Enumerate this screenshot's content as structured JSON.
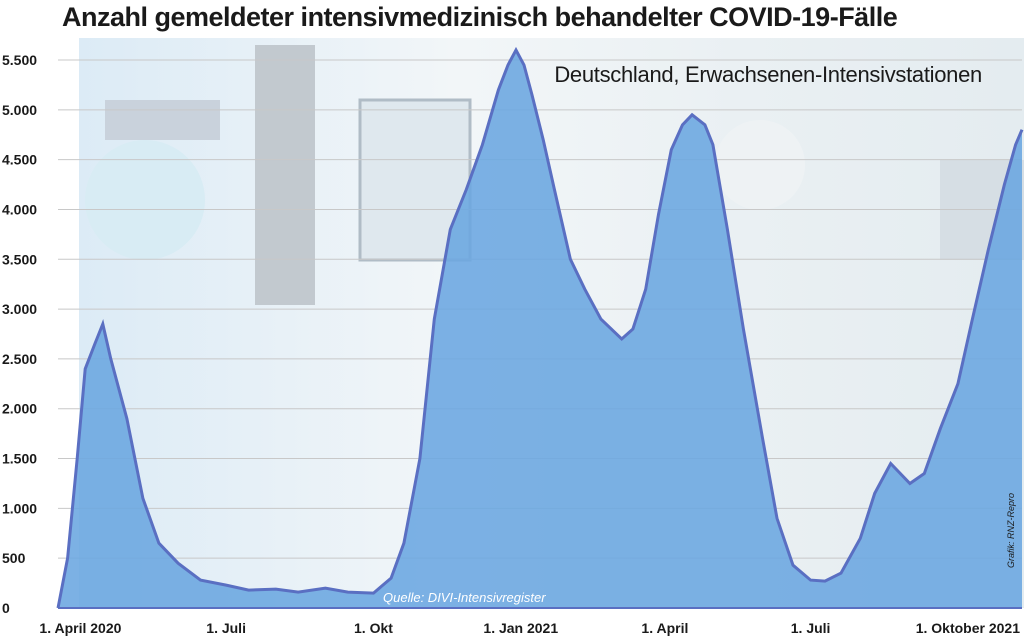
{
  "chart_data": {
    "type": "area",
    "title": "Anzahl gemeldeter intensivmedizinisch behandelter COVID-19-Fälle",
    "subtitle": "Deutschland, Erwachsenen-Intensivstationen",
    "source": "Quelle: DIVI-Intensivregister",
    "credit": "Grafik: RNZ-Repro",
    "xlabel": "",
    "ylabel": "",
    "ylim": [
      0,
      5500
    ],
    "grid": true,
    "background": "photo of intensive care unit staff (washed out)",
    "colors": {
      "area": "#6aa6e0",
      "line": "#5a6fc2"
    },
    "x_ticks": [
      {
        "date": "2020-04-01",
        "label": "1. April 2020"
      },
      {
        "date": "2020-07-01",
        "label": "1. Juli"
      },
      {
        "date": "2020-10-01",
        "label": "1. Okt"
      },
      {
        "date": "2021-01-01",
        "label": "1. Jan 2021"
      },
      {
        "date": "2021-04-01",
        "label": "1. April"
      },
      {
        "date": "2021-07-01",
        "label": "1. Juli"
      },
      {
        "date": "2021-10-01",
        "label": "1. Oktober 2021"
      }
    ],
    "y_ticks": [
      {
        "value": 0,
        "label": "0"
      },
      {
        "value": 500,
        "label": "500"
      },
      {
        "value": 1000,
        "label": "1.000"
      },
      {
        "value": 1500,
        "label": "1.500"
      },
      {
        "value": 2000,
        "label": "2.000"
      },
      {
        "value": 2500,
        "label": "2.500"
      },
      {
        "value": 3000,
        "label": "3.000"
      },
      {
        "value": 3500,
        "label": "3.500"
      },
      {
        "value": 4000,
        "label": "4.000"
      },
      {
        "value": 4500,
        "label": "4.500"
      },
      {
        "value": 5000,
        "label": "5.000"
      },
      {
        "value": 5500,
        "label": "5.500"
      }
    ],
    "series": [
      {
        "x": [
          "2020-03-18",
          "2020-03-24",
          "2020-03-30",
          "2020-04-04",
          "2020-04-10",
          "2020-04-15",
          "2020-04-20",
          "2020-04-30",
          "2020-05-10",
          "2020-05-20",
          "2020-06-01",
          "2020-06-15",
          "2020-07-01",
          "2020-07-15",
          "2020-08-01",
          "2020-08-15",
          "2020-09-01",
          "2020-09-15",
          "2020-10-01",
          "2020-10-12",
          "2020-10-20",
          "2020-10-30",
          "2020-11-08",
          "2020-11-18",
          "2020-11-28",
          "2020-12-08",
          "2020-12-18",
          "2020-12-24",
          "2020-12-29",
          "2021-01-03",
          "2021-01-08",
          "2021-01-15",
          "2021-01-22",
          "2021-02-01",
          "2021-02-10",
          "2021-02-20",
          "2021-03-05",
          "2021-03-12",
          "2021-03-20",
          "2021-03-28",
          "2021-04-05",
          "2021-04-12",
          "2021-04-18",
          "2021-04-22",
          "2021-04-26",
          "2021-05-01",
          "2021-05-10",
          "2021-05-20",
          "2021-06-01",
          "2021-06-10",
          "2021-06-20",
          "2021-07-01",
          "2021-07-10",
          "2021-07-20",
          "2021-08-01",
          "2021-08-10",
          "2021-08-20",
          "2021-09-01",
          "2021-09-10",
          "2021-09-20",
          "2021-10-01",
          "2021-10-10",
          "2021-10-20",
          "2021-10-30",
          "2021-11-06",
          "2021-11-10"
        ],
        "values": [
          0,
          500,
          1500,
          2400,
          2650,
          2850,
          2500,
          1900,
          1100,
          650,
          450,
          280,
          230,
          180,
          190,
          160,
          200,
          160,
          150,
          300,
          650,
          1500,
          2900,
          3800,
          4200,
          4650,
          5200,
          5450,
          5600,
          5450,
          5150,
          4700,
          4200,
          3500,
          3200,
          2900,
          2700,
          2800,
          3200,
          3950,
          4600,
          4850,
          4950,
          4900,
          4850,
          4650,
          3800,
          2800,
          1700,
          900,
          430,
          280,
          270,
          350,
          700,
          1150,
          1450,
          1250,
          1350,
          1800,
          2250,
          2900,
          3600,
          4250,
          4650,
          4800
        ]
      }
    ]
  }
}
